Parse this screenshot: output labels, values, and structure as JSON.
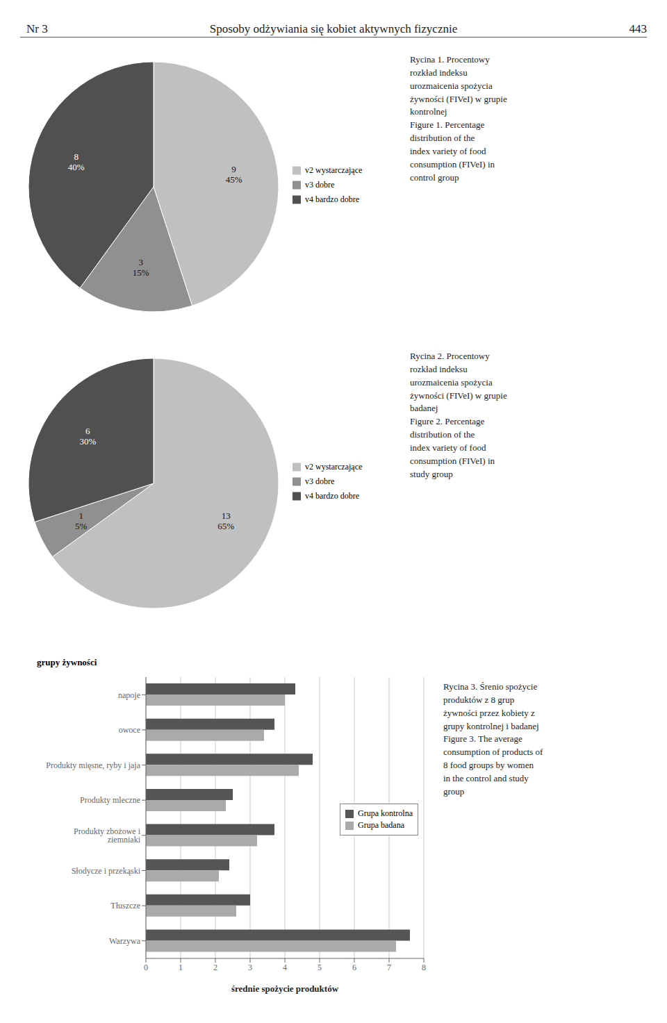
{
  "chart_data": [
    {
      "type": "pie",
      "annotations": [
        "Nr 3",
        "Sposoby odżywiania się kobiet aktywnych fizycznie",
        "443"
      ],
      "title": "Rycina 1. Procentowy\nrozkład  indeksu\nurozmaicenia spożycia\nżywności (FIVeI) w grupie\nkontrolnej\nFigure 1. Percentage\ndistribution of the\nindex variety of food\nconsumption (FIVeI) in\ncontrol group",
      "categories": [
        "v2 wystarczające",
        "v3 dobre",
        "v4 bardzo dobre"
      ],
      "values": [
        45,
        15,
        40
      ],
      "value_labels": [
        "9\n45%",
        "3\n15%",
        "8\n40%"
      ],
      "colors": [
        "#c0c0c0",
        "#909090",
        "#505050"
      ],
      "data_labels": true,
      "legend": "right"
    },
    {
      "type": "pie",
      "title": "Rycina 2. Procentowy\nrozkład  indeksu\nurozmaicenia spożycia\nżywności (FIVeI) w grupie\nbadanej\nFigure 2. Percentage\ndistribution of the\nindex variety of food\nconsumption (FIVeI) in\nstudy group",
      "categories": [
        "v2 wystarczające",
        "v3 dobre",
        "v4 bardzo dobre"
      ],
      "values": [
        65,
        5,
        30
      ],
      "value_labels": [
        "13\n65%",
        "1\n5%",
        "6\n30%"
      ],
      "colors": [
        "#c0c0c0",
        "#909090",
        "#505050"
      ],
      "data_labels": true,
      "legend": "right"
    },
    {
      "type": "bar",
      "orientation": "horizontal",
      "title": "Rycina 3. Śrenio spożycie\nproduktów z 8 grup\nżywności przez kobiety z\ngrupy kontrolnej i badanej\nFigure 3. The average\nconsumption of products of\n8 food groups  by women\nin the control and study\ngroup",
      "categories": [
        "Warzywa",
        "Tłuszcze",
        "Słodycze i przekąski",
        "Produkty zbożowe i ziemniaki",
        "Produkty mleczne",
        "Produkty mięsne, ryby i jaja",
        "owoce",
        "napoje"
      ],
      "series": [
        {
          "name": "Grupa kontrolna",
          "color": "#555555",
          "values": [
            7.6,
            3.0,
            2.4,
            3.7,
            2.5,
            4.8,
            3.7,
            4.3
          ]
        },
        {
          "name": "Grupa badana",
          "color": "#aaaaaa",
          "values": [
            7.2,
            2.6,
            2.1,
            3.2,
            2.3,
            4.4,
            3.4,
            4.0
          ]
        }
      ],
      "xlabel": "średnie spożycie produktów",
      "ylabel": "grupy żywności",
      "xlim": [
        0,
        8
      ],
      "xticks": [
        0,
        1,
        2,
        3,
        4,
        5,
        6,
        7,
        8
      ],
      "grid": true,
      "legend": "right"
    }
  ]
}
